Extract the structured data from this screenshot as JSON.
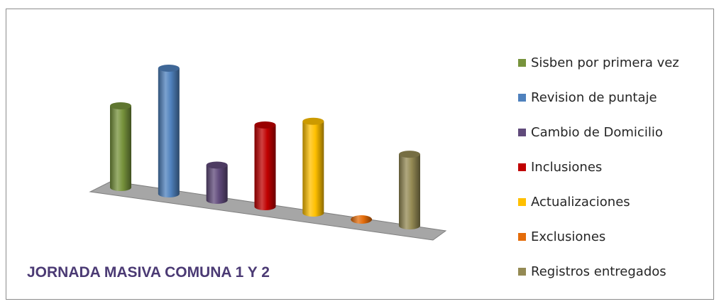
{
  "chart_data": {
    "type": "bar",
    "style": "3d-cylinder",
    "title": "JORNADA MASIVA COMUNA 1 Y 2",
    "xlabel": "",
    "ylabel": "",
    "ylim": [
      0,
      100
    ],
    "grid": false,
    "legend_position": "right",
    "series": [
      {
        "name": "Sisben por primera vez",
        "value": 65,
        "color": "#77933c"
      },
      {
        "name": "Revision de puntaje",
        "value": 100,
        "color": "#4f81bd"
      },
      {
        "name": "Cambio de Domicilio",
        "value": 28,
        "color": "#604a7b"
      },
      {
        "name": "Inclusiones",
        "value": 65,
        "color": "#c00000"
      },
      {
        "name": "Actualizaciones",
        "value": 73,
        "color": "#ffc000"
      },
      {
        "name": "Exclusiones",
        "value": 0,
        "color": "#e46c0a"
      },
      {
        "name": "Registros entregados",
        "value": 57,
        "color": "#948a54"
      }
    ]
  }
}
